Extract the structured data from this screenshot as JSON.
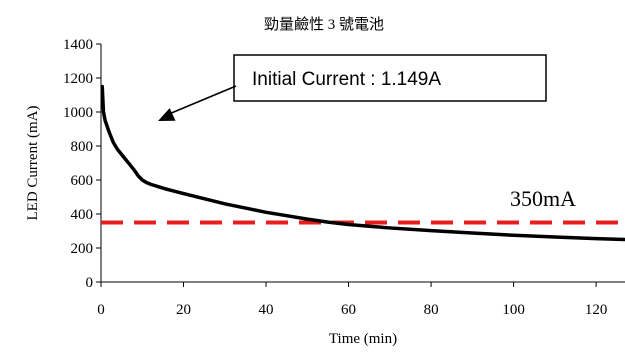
{
  "chart_data": {
    "type": "line",
    "title": "勁量鹼性 3 號電池",
    "xlabel": "Time (min)",
    "ylabel": "LED Current (mA)",
    "xlim": [
      0,
      127
    ],
    "ylim": [
      0,
      1400
    ],
    "xticks": [
      0,
      20,
      40,
      60,
      80,
      100,
      120
    ],
    "yticks": [
      0,
      200,
      400,
      600,
      800,
      1000,
      1200,
      1400
    ],
    "grid": false,
    "series": [
      {
        "color": "#000000",
        "x": [
          0.3,
          0.6,
          1,
          2,
          3,
          4,
          5,
          6,
          7,
          8,
          9,
          10,
          11,
          12,
          14,
          16,
          20,
          25,
          30,
          35,
          40,
          45,
          50,
          55,
          60,
          65,
          70,
          80,
          90,
          100,
          110,
          120,
          127
        ],
        "y": [
          1149,
          1000,
          950,
          880,
          820,
          780,
          750,
          720,
          690,
          660,
          625,
          600,
          585,
          575,
          560,
          545,
          520,
          490,
          460,
          435,
          410,
          390,
          370,
          352,
          338,
          328,
          318,
          302,
          288,
          275,
          265,
          255,
          250
        ]
      }
    ],
    "reference_line": {
      "y": 350,
      "label": "350mA",
      "color": "#e61e1e"
    },
    "annotation": {
      "text": "Initial Current : 1.149A"
    }
  }
}
